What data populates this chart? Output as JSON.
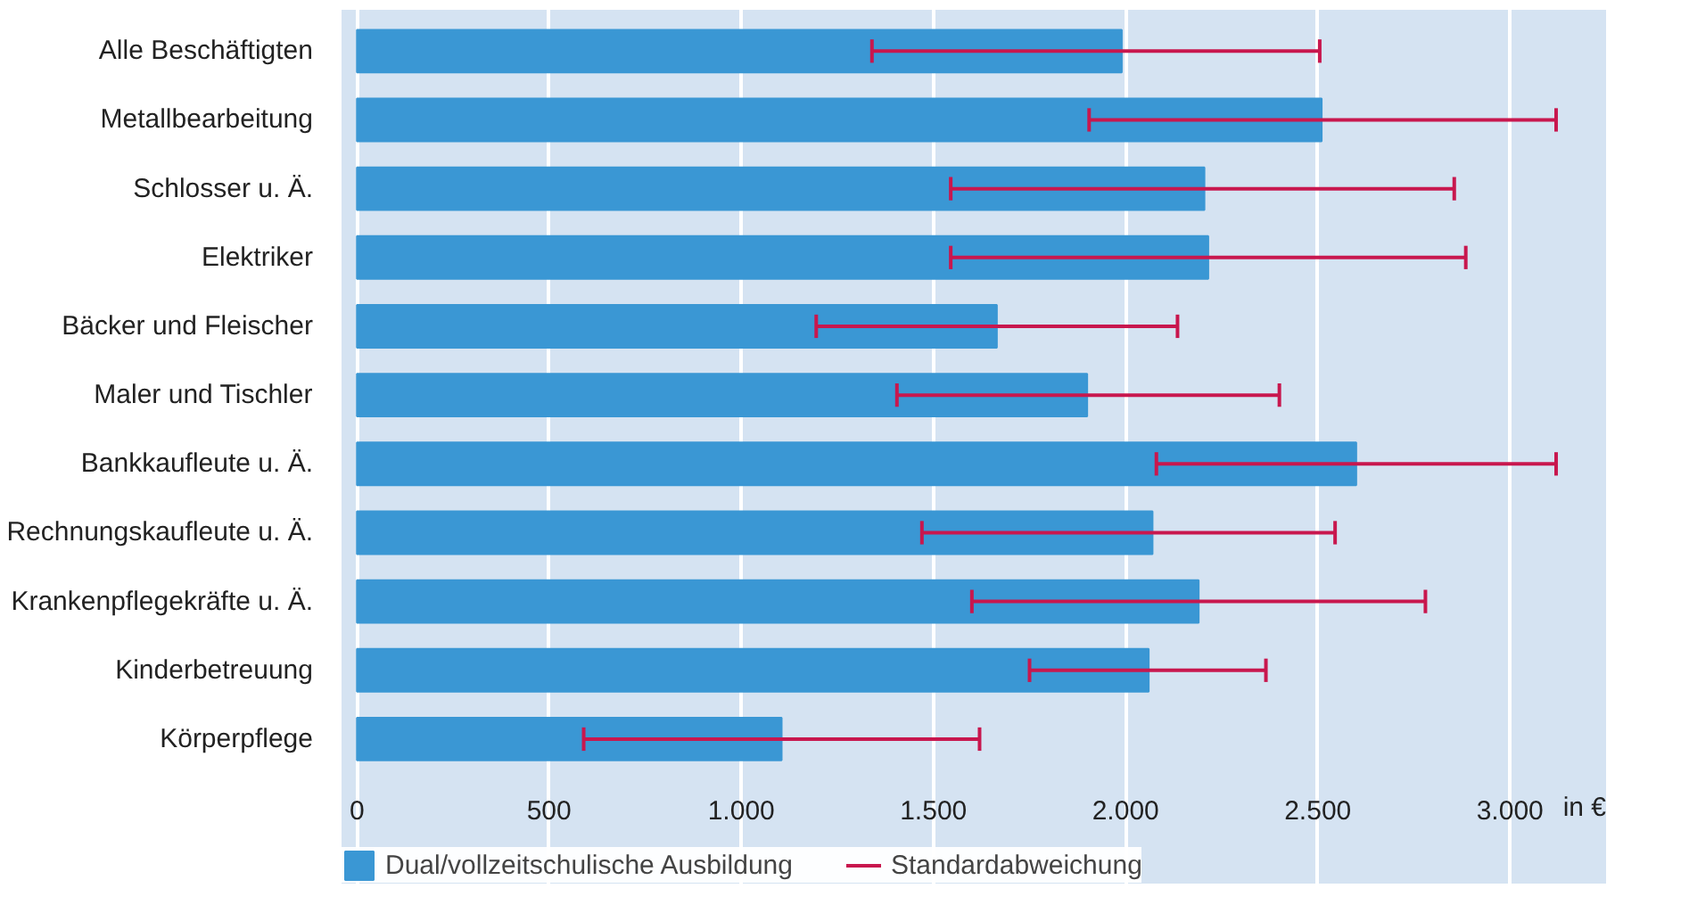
{
  "chart_data": {
    "type": "bar",
    "orientation": "horizontal",
    "xlabel": "in €",
    "categories": [
      "Alle Beschäftigten",
      "Metallbearbeitung",
      "Schlosser u. Ä.",
      "Elektriker",
      "Bäcker und Fleischer",
      "Maler und Tischler",
      "Bankkaufleute u. Ä.",
      "Rechnungskaufleute u. Ä.",
      "Krankenpflegekräfte u. Ä.",
      "Kinderbetreuung",
      "Körperpflege"
    ],
    "series": [
      {
        "name": "Dual/vollzeitschulische Ausbildung",
        "color": "#3a97d4",
        "values": [
          1990,
          2510,
          2205,
          2215,
          1665,
          1900,
          2600,
          2070,
          2190,
          2060,
          1105
        ],
        "errors": [
          [
            1340,
            2505
          ],
          [
            1905,
            3120
          ],
          [
            1545,
            2855
          ],
          [
            1545,
            2885
          ],
          [
            1195,
            2135
          ],
          [
            1405,
            2400
          ],
          [
            2080,
            3120
          ],
          [
            1470,
            2545
          ],
          [
            1600,
            2780
          ],
          [
            1750,
            2365
          ],
          [
            590,
            1620
          ]
        ]
      }
    ],
    "annotations": [
      "Standardabweichung"
    ],
    "xlim": [
      -40,
      3250
    ],
    "xticks": [
      0,
      {
        "value": 500,
        "label": "500"
      },
      {
        "value": 1000,
        "label": "1.000"
      },
      {
        "value": 1500,
        "label": "1.500"
      },
      {
        "value": 2000,
        "label": "2.000"
      },
      {
        "value": 2500,
        "label": "2.500"
      },
      {
        "value": 3000,
        "label": "3.000"
      }
    ],
    "grid": "x",
    "legend": "bottom"
  }
}
